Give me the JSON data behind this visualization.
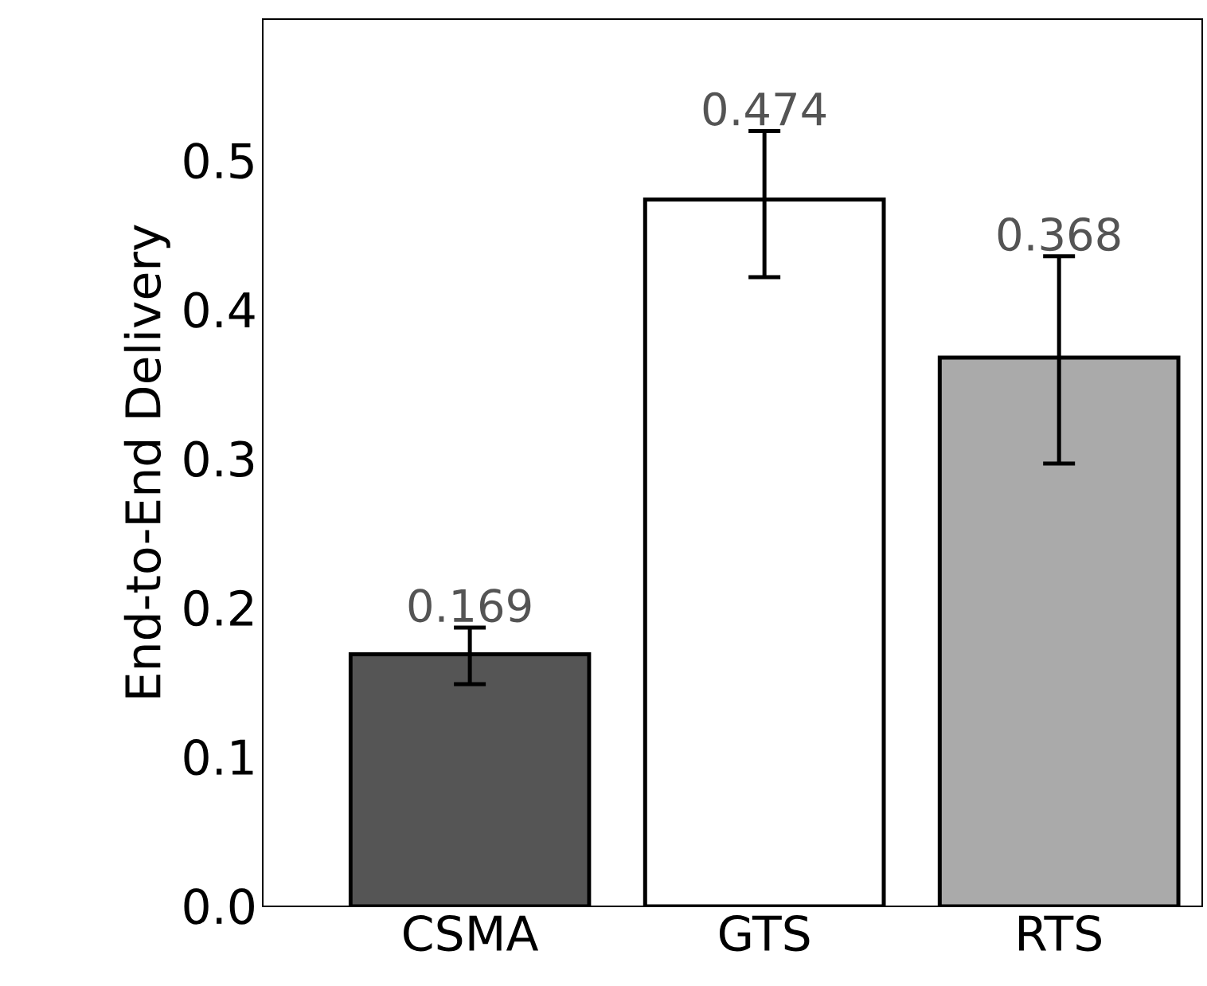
{
  "chart_data": {
    "type": "bar",
    "ylabel": "End-to-End Delivery",
    "categories": [
      "CSMA",
      "GTS",
      "RTS"
    ],
    "values": [
      0.169,
      0.474,
      0.368
    ],
    "colors": [
      "#555555",
      "#ffffff",
      "#aaaaaa"
    ],
    "errors": [
      [
        0.149,
        0.187
      ],
      [
        0.422,
        0.52
      ],
      [
        0.297,
        0.436
      ]
    ],
    "data_labels": true,
    "ylim": [
      0,
      0.595
    ],
    "yticks": [
      {
        "value": 0,
        "label": "0.0"
      },
      {
        "value": 0.1,
        "label": "0.1"
      },
      {
        "value": 0.2,
        "label": "0.2"
      },
      {
        "value": 0.3,
        "label": "0.3"
      },
      {
        "value": 0.4,
        "label": "0.4"
      },
      {
        "value": 0.5,
        "label": "0.5"
      }
    ],
    "grid": false
  }
}
